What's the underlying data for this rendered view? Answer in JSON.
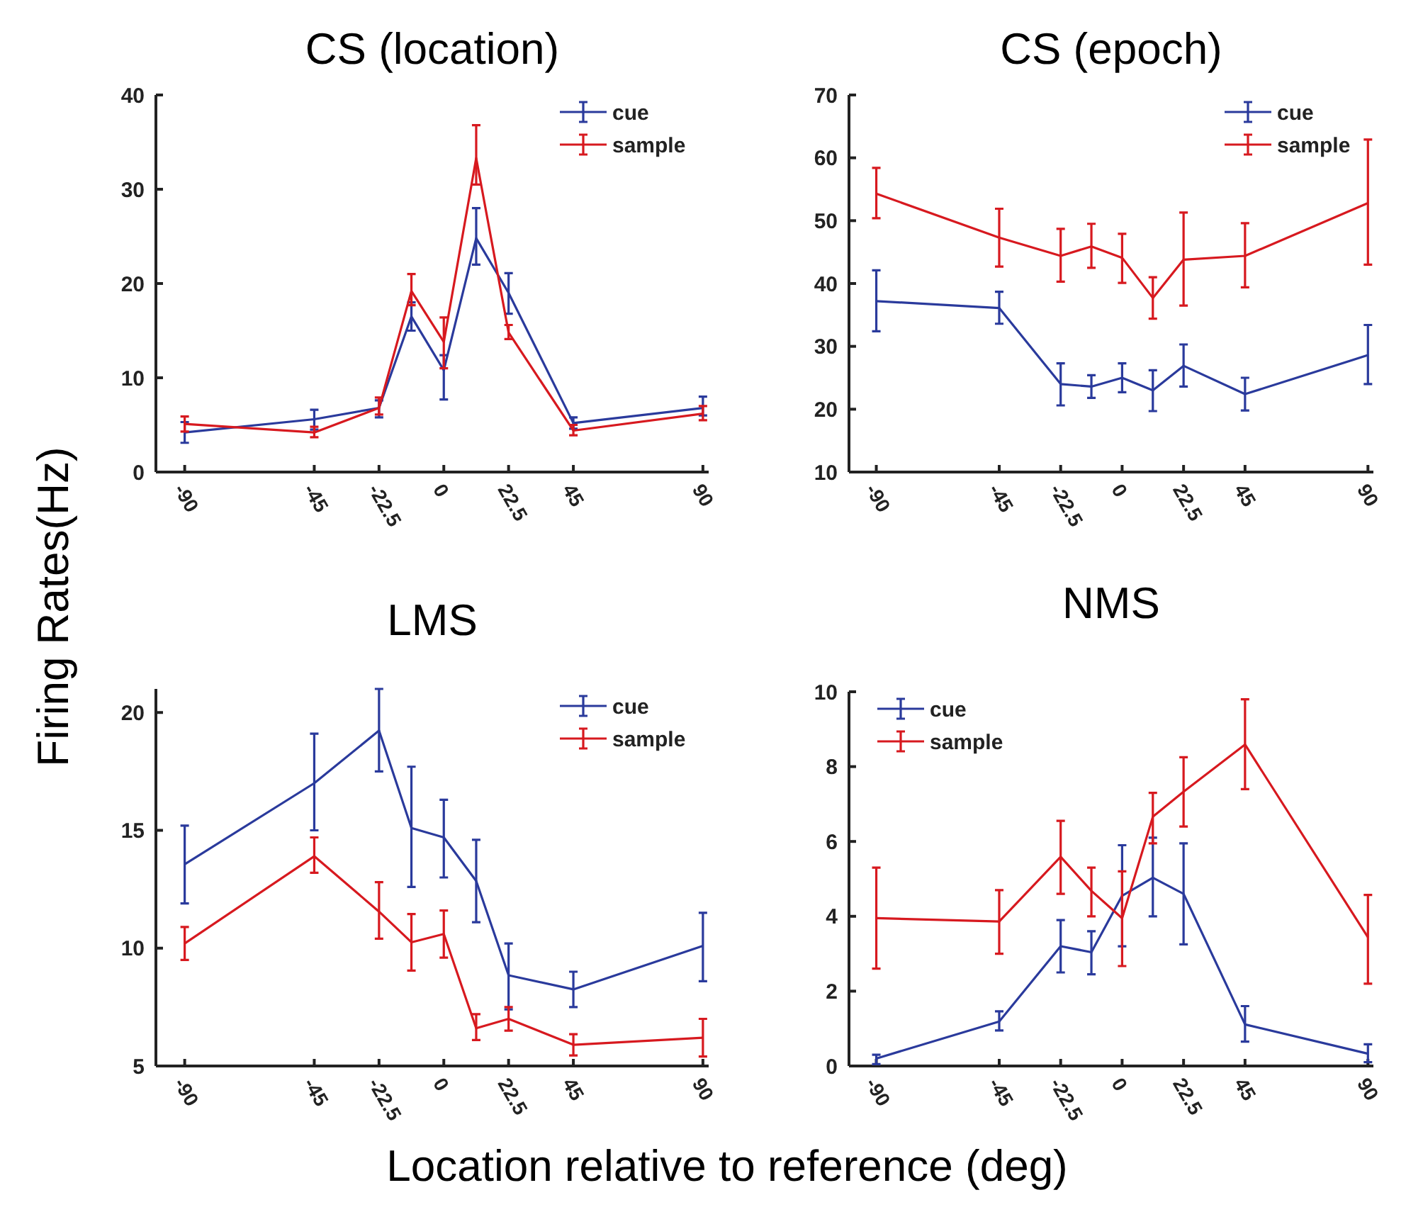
{
  "chart_data": [
    {
      "type": "line",
      "title": "CS (location)",
      "ylabel": "Firing Rates(Hz)",
      "x": [
        -90,
        -45,
        -22.5,
        -11.25,
        0,
        11.25,
        22.5,
        45,
        90
      ],
      "xlim": [
        -100,
        92
      ],
      "xticks": [
        -90,
        -45,
        -22.5,
        0,
        22.5,
        45,
        90
      ],
      "ylim": [
        0,
        40
      ],
      "yticks": [
        0,
        10,
        20,
        30,
        40
      ],
      "legend": "top right",
      "series": [
        {
          "name": "cue",
          "color": "#2a3a9c",
          "values": [
            4.2,
            5.6,
            6.8,
            16.5,
            10.8,
            24.8,
            19.0,
            5.2,
            6.8
          ],
          "errors": [
            [
              3.1,
              5.3
            ],
            [
              4.5,
              6.6
            ],
            [
              5.8,
              7.6
            ],
            [
              15.0,
              18.0
            ],
            [
              7.7,
              12.4
            ],
            [
              22.0,
              28.0
            ],
            [
              16.8,
              21.1
            ],
            [
              4.6,
              5.8
            ],
            [
              6.0,
              8.0
            ]
          ]
        },
        {
          "name": "sample",
          "color": "#d7191f",
          "values": [
            5.1,
            4.2,
            6.8,
            19.2,
            13.8,
            33.3,
            14.8,
            4.4,
            6.2
          ],
          "errors": [
            [
              4.3,
              5.9
            ],
            [
              3.7,
              4.8
            ],
            [
              6.1,
              7.9
            ],
            [
              17.7,
              21.0
            ],
            [
              11.0,
              16.4
            ],
            [
              30.5,
              36.8
            ],
            [
              14.1,
              15.6
            ],
            [
              3.9,
              5.0
            ],
            [
              5.5,
              7.0
            ]
          ]
        }
      ]
    },
    {
      "type": "line",
      "title": "CS (epoch)",
      "x": [
        -90,
        -45,
        -22.5,
        -11.25,
        0,
        11.25,
        22.5,
        45,
        90
      ],
      "xlim": [
        -100,
        92
      ],
      "xticks": [
        -90,
        -45,
        -22.5,
        0,
        22.5,
        45,
        90
      ],
      "ylim": [
        10,
        70
      ],
      "yticks": [
        10,
        20,
        30,
        40,
        50,
        60,
        70
      ],
      "legend": "top right",
      "series": [
        {
          "name": "cue",
          "color": "#2a3a9c",
          "values": [
            37.2,
            36.1,
            24.0,
            23.6,
            25.0,
            23.0,
            26.9,
            22.4,
            28.6
          ],
          "errors": [
            [
              32.4,
              42.1
            ],
            [
              33.6,
              38.7
            ],
            [
              20.6,
              27.3
            ],
            [
              21.8,
              25.4
            ],
            [
              22.7,
              27.3
            ],
            [
              19.7,
              26.2
            ],
            [
              23.6,
              30.3
            ],
            [
              19.8,
              25.0
            ],
            [
              24.0,
              33.4
            ]
          ]
        },
        {
          "name": "sample",
          "color": "#d7191f",
          "values": [
            54.3,
            47.3,
            44.4,
            45.9,
            44.1,
            37.7,
            43.8,
            44.4,
            52.8
          ],
          "errors": [
            [
              50.4,
              58.4
            ],
            [
              42.7,
              51.9
            ],
            [
              40.3,
              48.7
            ],
            [
              42.5,
              49.5
            ],
            [
              40.1,
              47.9
            ],
            [
              34.4,
              41.0
            ],
            [
              36.5,
              51.3
            ],
            [
              39.4,
              49.6
            ],
            [
              43.0,
              62.9
            ]
          ]
        }
      ]
    },
    {
      "type": "line",
      "title": "LMS",
      "xlabel": "Location relative to reference (deg)",
      "x": [
        -90,
        -45,
        -22.5,
        -11.25,
        0,
        11.25,
        22.5,
        45,
        90
      ],
      "xlim": [
        -100,
        92
      ],
      "xticks": [
        -90,
        -45,
        -22.5,
        0,
        22.5,
        45,
        90
      ],
      "ylim": [
        5,
        21
      ],
      "yticks": [
        5,
        10,
        15,
        20
      ],
      "legend": "top right",
      "series": [
        {
          "name": "cue",
          "color": "#2a3a9c",
          "values": [
            13.56,
            17.0,
            19.23,
            15.1,
            14.7,
            12.85,
            8.85,
            8.25,
            10.1
          ],
          "errors": [
            [
              11.9,
              15.2
            ],
            [
              15.0,
              19.1
            ],
            [
              17.5,
              21.0
            ],
            [
              12.6,
              17.7
            ],
            [
              13.0,
              16.3
            ],
            [
              11.1,
              14.6
            ],
            [
              7.4,
              10.2
            ],
            [
              7.5,
              9.0
            ],
            [
              8.6,
              11.5
            ]
          ]
        },
        {
          "name": "sample",
          "color": "#d7191f",
          "values": [
            10.2,
            13.9,
            11.55,
            10.25,
            10.6,
            6.6,
            7.0,
            5.9,
            6.2
          ],
          "errors": [
            [
              9.5,
              10.9
            ],
            [
              13.2,
              14.7
            ],
            [
              10.4,
              12.8
            ],
            [
              9.05,
              11.45
            ],
            [
              9.6,
              11.6
            ],
            [
              6.1,
              7.2
            ],
            [
              6.5,
              7.5
            ],
            [
              5.45,
              6.35
            ],
            [
              5.4,
              7.0
            ]
          ]
        }
      ]
    },
    {
      "type": "line",
      "title": "NMS",
      "x": [
        -90,
        -45,
        -22.5,
        -11.25,
        0,
        11.25,
        22.5,
        45,
        90
      ],
      "xlim": [
        -100,
        92
      ],
      "xticks": [
        -90,
        -45,
        -22.5,
        0,
        22.5,
        45,
        90
      ],
      "ylim": [
        0,
        10
      ],
      "yticks": [
        0,
        2,
        4,
        6,
        8,
        10
      ],
      "legend": "top left",
      "series": [
        {
          "name": "cue",
          "color": "#2a3a9c",
          "values": [
            0.2,
            1.19,
            3.2,
            3.04,
            4.55,
            5.03,
            4.6,
            1.11,
            0.33
          ],
          "errors": [
            [
              0.05,
              0.3
            ],
            [
              0.95,
              1.46
            ],
            [
              2.5,
              3.9
            ],
            [
              2.45,
              3.6
            ],
            [
              3.2,
              5.9
            ],
            [
              4.0,
              6.1
            ],
            [
              3.25,
              5.95
            ],
            [
              0.65,
              1.6
            ],
            [
              0.1,
              0.58
            ]
          ]
        },
        {
          "name": "sample",
          "color": "#d7191f",
          "values": [
            3.95,
            3.86,
            5.59,
            4.68,
            3.95,
            6.66,
            7.33,
            8.59,
            3.44
          ],
          "errors": [
            [
              2.6,
              5.3
            ],
            [
              3.0,
              4.7
            ],
            [
              4.6,
              6.55
            ],
            [
              4.0,
              5.3
            ],
            [
              2.67,
              5.2
            ],
            [
              5.95,
              7.3
            ],
            [
              6.4,
              8.25
            ],
            [
              7.4,
              9.8
            ],
            [
              2.2,
              4.57
            ]
          ]
        }
      ]
    }
  ]
}
